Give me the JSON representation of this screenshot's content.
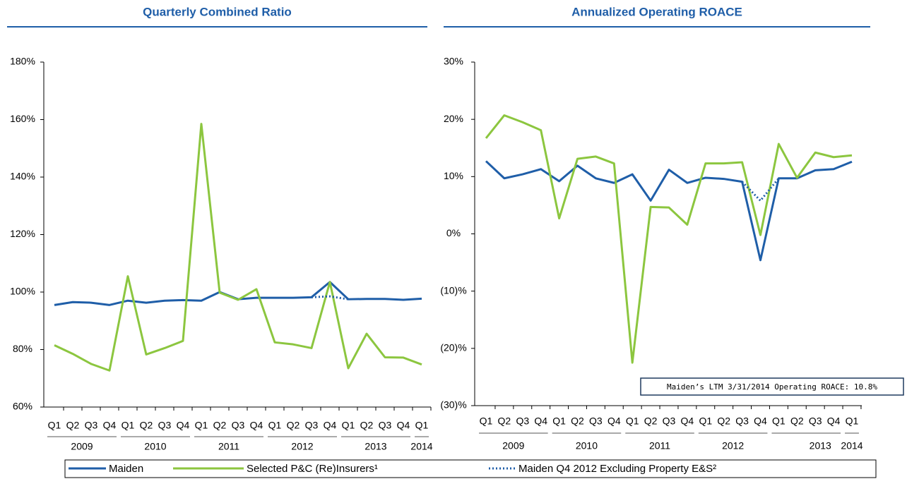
{
  "chart_data": [
    {
      "type": "line",
      "title": "Quarterly Combined Ratio",
      "categories": [
        "Q1",
        "Q2",
        "Q3",
        "Q4",
        "Q1",
        "Q2",
        "Q3",
        "Q4",
        "Q1",
        "Q2",
        "Q3",
        "Q4",
        "Q1",
        "Q2",
        "Q3",
        "Q4",
        "Q1",
        "Q2",
        "Q3",
        "Q4",
        "Q1"
      ],
      "year_labels": [
        "2009",
        "2010",
        "2011",
        "2012",
        "2013",
        "2014"
      ],
      "ylim": [
        60,
        180
      ],
      "yticks": [
        {
          "value": 60,
          "label": "60%"
        },
        {
          "value": 80,
          "label": "80%"
        },
        {
          "value": 100,
          "label": "100%"
        },
        {
          "value": 120,
          "label": "120%"
        },
        {
          "value": 140,
          "label": "140%"
        },
        {
          "value": 160,
          "label": "160%"
        },
        {
          "value": 180,
          "label": "180%"
        }
      ],
      "series": [
        {
          "name": "Maiden",
          "color": "#1f5ea8",
          "dash": "solid",
          "values": [
            95.5,
            96.5,
            96.3,
            95.5,
            97,
            96.3,
            97,
            97.2,
            97,
            100,
            97.5,
            98,
            98,
            98,
            98.2,
            103.5,
            97.5,
            97.6,
            97.6,
            97.3,
            97.7
          ]
        },
        {
          "name": "Selected P&C (Re)Insurers¹",
          "color": "#8cc63f",
          "dash": "solid",
          "values": [
            81.5,
            78.5,
            75,
            72.7,
            105.5,
            78.3,
            80.5,
            83,
            158.5,
            99.8,
            97.3,
            101,
            82.5,
            81.8,
            80.5,
            103.5,
            73.5,
            85.5,
            77.3,
            77.2,
            74.8
          ]
        },
        {
          "name": "Maiden Q4 2012 Excluding Property E&S²",
          "color": "#1f5ea8",
          "dash": "dotted",
          "values": [
            null,
            null,
            null,
            null,
            null,
            null,
            null,
            null,
            null,
            null,
            null,
            null,
            null,
            null,
            98.2,
            98.5,
            97.5,
            null,
            null,
            null,
            null
          ]
        }
      ]
    },
    {
      "type": "line",
      "title": "Annualized Operating ROACE",
      "categories": [
        "Q1",
        "Q2",
        "Q3",
        "Q4",
        "Q1",
        "Q2",
        "Q3",
        "Q4",
        "Q1",
        "Q2",
        "Q3",
        "Q4",
        "Q1",
        "Q2",
        "Q3",
        "Q4",
        "Q1",
        "Q2",
        "Q3",
        "Q4",
        "Q1"
      ],
      "year_labels": [
        "2009",
        "2010",
        "2011",
        "2012",
        "2013",
        "2014"
      ],
      "ylim": [
        -30,
        30
      ],
      "yticks": [
        {
          "value": -30,
          "label": "(30)%"
        },
        {
          "value": -20,
          "label": "(20)%"
        },
        {
          "value": -10,
          "label": "(10)%"
        },
        {
          "value": 0,
          "label": "0%"
        },
        {
          "value": 10,
          "label": "10%"
        },
        {
          "value": 20,
          "label": "20%"
        },
        {
          "value": 30,
          "label": "30%"
        }
      ],
      "annotation": "Maiden’s LTM 3/31/2014 Operating ROACE: 10.8%",
      "series": [
        {
          "color": "#1f5ea8",
          "dash": "solid",
          "values": [
            12.7,
            9.7,
            10.4,
            11.3,
            9.2,
            11.9,
            9.7,
            8.9,
            10.4,
            5.8,
            11.2,
            8.9,
            9.8,
            9.6,
            9.1,
            -4.6,
            9.7,
            9.7,
            11.1,
            11.3,
            12.6
          ]
        },
        {
          "color": "#8cc63f",
          "dash": "solid",
          "values": [
            16.7,
            20.7,
            19.5,
            18.1,
            2.7,
            13.1,
            13.5,
            12.3,
            -22.5,
            4.7,
            4.6,
            1.6,
            12.3,
            12.3,
            12.5,
            -0.2,
            15.7,
            9.8,
            14.2,
            13.4,
            13.7
          ]
        },
        {
          "color": "#1f5ea8",
          "dash": "dotted",
          "values": [
            null,
            null,
            null,
            null,
            null,
            null,
            null,
            null,
            null,
            null,
            null,
            null,
            null,
            null,
            9.1,
            5.8,
            9.7,
            null,
            null,
            null,
            null
          ]
        }
      ]
    }
  ]
}
